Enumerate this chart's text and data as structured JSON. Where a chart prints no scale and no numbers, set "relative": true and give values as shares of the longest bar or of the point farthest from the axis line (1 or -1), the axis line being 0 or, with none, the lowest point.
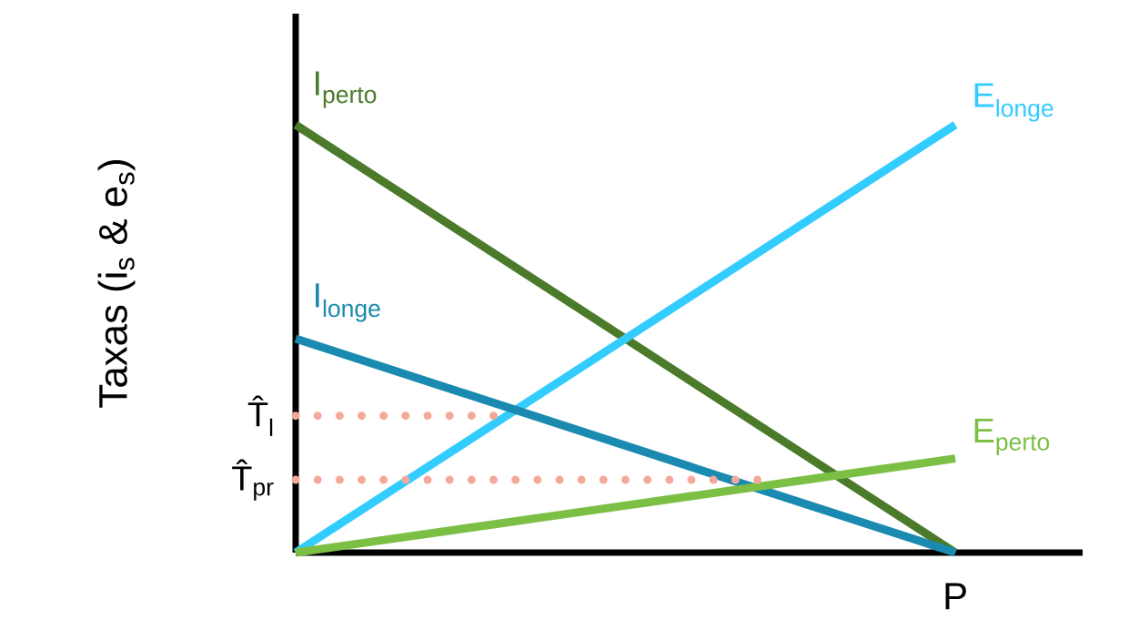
{
  "chart_data": {
    "type": "line",
    "relative": true,
    "xlabel": "P",
    "ylabel": "Taxas (i$_{s}$ & e$_{s}$)",
    "categories": [
      null,
      null,
      null,
      null,
      null,
      null,
      null,
      null,
      null,
      null,
      null
    ],
    "series": [
      {
        "name": "I$_{perto}$",
        "color": "#4a7a2a",
        "values": [
          1.0,
          0.9,
          0.8,
          0.7,
          0.6,
          0.5,
          0.4,
          0.3,
          0.2,
          0.1,
          0
        ]
      },
      {
        "name": "E$_{longe}$",
        "color": "#33ccff",
        "values": [
          0,
          0.1,
          0.2,
          0.3,
          0.4,
          0.5,
          0.6,
          0.7,
          0.8,
          0.9,
          1.0
        ]
      },
      {
        "name": "I$_{longe}$",
        "color": "#1a8ab0",
        "values": [
          0.5,
          0.45,
          0.4,
          0.35,
          0.3,
          0.25,
          0.2,
          0.15,
          0.1,
          0.05,
          0
        ]
      },
      {
        "name": "E$_{perto}$",
        "color": "#7cbf45",
        "values": [
          0,
          0.022,
          0.044,
          0.066,
          0.088,
          0.11,
          0.132,
          0.154,
          0.176,
          0.198,
          0.22
        ]
      },
      {
        "name": "T̂$_{l}$",
        "color": "#f4a99a",
        "line_style": "dotted",
        "values": [
          0.32,
          0.32,
          0.32,
          0.32,
          null,
          null,
          null,
          null,
          null,
          null,
          null
        ]
      },
      {
        "name": "T̂$_{pr}$",
        "color": "#f4a99a",
        "line_style": "dotted",
        "values": [
          0.17,
          0.17,
          0.17,
          0.17,
          0.17,
          0.17,
          0.17,
          0.17,
          null,
          null,
          null
        ]
      }
    ]
  }
}
